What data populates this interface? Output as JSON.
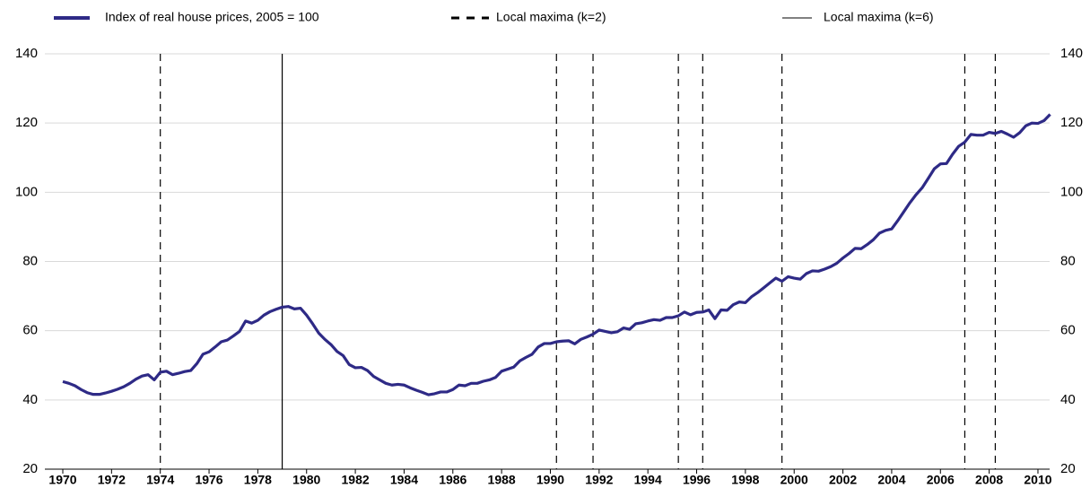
{
  "chart_data": {
    "type": "line",
    "series": [
      {
        "name": "Index of real house prices, 2005 = 100",
        "color": "#2e2a86",
        "values": [
          45.3,
          44.8,
          44.1,
          43.0,
          42.1,
          41.6,
          41.6,
          42.0,
          42.5,
          43.1,
          43.8,
          44.8,
          46.0,
          46.9,
          47.3,
          45.8,
          48.0,
          48.3,
          47.3,
          47.7,
          48.2,
          48.5,
          50.5,
          53.2,
          53.9,
          55.3,
          56.8,
          57.3,
          58.5,
          59.8,
          62.8,
          62.2,
          63.0,
          64.5,
          65.5,
          66.2,
          66.8,
          67.0,
          66.3,
          66.5,
          64.5,
          62.0,
          59.3,
          57.5,
          56.0,
          54.0,
          52.8,
          50.2,
          49.3,
          49.4,
          48.5,
          46.8,
          45.8,
          44.8,
          44.3,
          44.5,
          44.3,
          43.5,
          42.8,
          42.2,
          41.5,
          41.8,
          42.3,
          42.3,
          43.0,
          44.3,
          44.1,
          44.8,
          44.8,
          45.4,
          45.8,
          46.5,
          48.3,
          48.9,
          49.5,
          51.3,
          52.3,
          53.2,
          55.3,
          56.3,
          56.3,
          56.8,
          57.0,
          57.1,
          56.2,
          57.5,
          58.2,
          59.0,
          60.2,
          59.8,
          59.4,
          59.7,
          60.8,
          60.4,
          62.0,
          62.3,
          62.8,
          63.2,
          63.0,
          63.8,
          63.8,
          64.3,
          65.4,
          64.6,
          65.3,
          65.4,
          66.0,
          63.5,
          66.0,
          65.9,
          67.5,
          68.3,
          68.1,
          69.8,
          71.0,
          72.4,
          73.8,
          75.2,
          74.3,
          75.6,
          75.2,
          74.9,
          76.5,
          77.3,
          77.2,
          77.8,
          78.5,
          79.5,
          81.0,
          82.3,
          83.8,
          83.7,
          84.9,
          86.3,
          88.2,
          89.0,
          89.4,
          91.8,
          94.4,
          97.0,
          99.3,
          101.3,
          104.0,
          106.8,
          108.2,
          108.3,
          111.0,
          113.3,
          114.5,
          116.7,
          116.5,
          116.5,
          117.3,
          117.0,
          117.6,
          116.8,
          115.9,
          117.2,
          119.2,
          120.0,
          119.9,
          120.7,
          122.5
        ]
      }
    ],
    "x": [
      1970,
      1970.25,
      1970.5,
      1970.75,
      1971,
      1971.25,
      1971.5,
      1971.75,
      1972,
      1972.25,
      1972.5,
      1972.75,
      1973,
      1973.25,
      1973.5,
      1973.75,
      1974,
      1974.25,
      1974.5,
      1974.75,
      1975,
      1975.25,
      1975.5,
      1975.75,
      1976,
      1976.25,
      1976.5,
      1976.75,
      1977,
      1977.25,
      1977.5,
      1977.75,
      1978,
      1978.25,
      1978.5,
      1978.75,
      1979,
      1979.25,
      1979.5,
      1979.75,
      1980,
      1980.25,
      1980.5,
      1980.75,
      1981,
      1981.25,
      1981.5,
      1981.75,
      1982,
      1982.25,
      1982.5,
      1982.75,
      1983,
      1983.25,
      1983.5,
      1983.75,
      1984,
      1984.25,
      1984.5,
      1984.75,
      1985,
      1985.25,
      1985.5,
      1985.75,
      1986,
      1986.25,
      1986.5,
      1986.75,
      1987,
      1987.25,
      1987.5,
      1987.75,
      1988,
      1988.25,
      1988.5,
      1988.75,
      1989,
      1989.25,
      1989.5,
      1989.75,
      1990,
      1990.25,
      1990.5,
      1990.75,
      1991,
      1991.25,
      1991.5,
      1991.75,
      1992,
      1992.25,
      1992.5,
      1992.75,
      1993,
      1993.25,
      1993.5,
      1993.75,
      1994,
      1994.25,
      1994.5,
      1994.75,
      1995,
      1995.25,
      1995.5,
      1995.75,
      1996,
      1996.25,
      1996.5,
      1996.75,
      1997,
      1997.25,
      1997.5,
      1997.75,
      1998,
      1998.25,
      1998.5,
      1998.75,
      1999,
      1999.25,
      1999.5,
      1999.75,
      2000,
      2000.25,
      2000.5,
      2000.75,
      2001,
      2001.25,
      2001.5,
      2001.75,
      2002,
      2002.25,
      2002.5,
      2002.75,
      2003,
      2003.25,
      2003.5,
      2003.75,
      2004,
      2004.25,
      2004.5,
      2004.75,
      2005,
      2005.25,
      2005.5,
      2005.75,
      2006,
      2006.25,
      2006.5,
      2006.75,
      2007,
      2007.25,
      2007.5,
      2007.75,
      2008,
      2008.25,
      2008.5,
      2008.75,
      2009,
      2009.25,
      2009.5,
      2009.75,
      2010,
      2010.25,
      2010.5
    ],
    "vlines": [
      {
        "name": "Local maxima (k=2)",
        "style": "dashed",
        "color": "#000000",
        "x": [
          1974.0,
          1990.25,
          1991.75,
          1995.25,
          1996.25,
          1999.5,
          2007.0,
          2008.25
        ]
      },
      {
        "name": "Local maxima (k=6)",
        "style": "solid",
        "color": "#000000",
        "x": [
          1979.0
        ]
      }
    ],
    "xlim": [
      1969.5,
      2010.7
    ],
    "xticks": [
      1970,
      1972,
      1974,
      1976,
      1978,
      1980,
      1982,
      1984,
      1986,
      1988,
      1990,
      1992,
      1994,
      1996,
      1998,
      2000,
      2002,
      2004,
      2006,
      2008,
      2010
    ],
    "ylim": [
      20,
      140
    ],
    "yticks": [
      20,
      40,
      60,
      80,
      100,
      120,
      140
    ],
    "y2lim": [
      20,
      140
    ],
    "y2ticks": [
      20,
      40,
      60,
      80,
      100,
      120,
      140
    ],
    "grid": true
  }
}
